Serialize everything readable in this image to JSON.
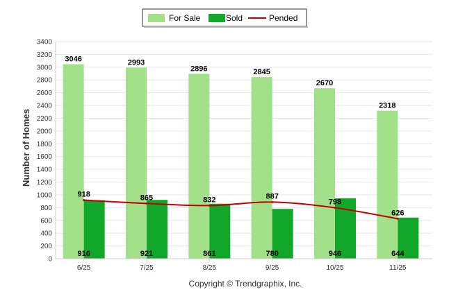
{
  "chart_data": {
    "type": "bar",
    "categories": [
      "6/25",
      "7/25",
      "8/25",
      "9/25",
      "10/25",
      "11/25"
    ],
    "series": [
      {
        "name": "For Sale",
        "kind": "bar",
        "color": "#a3e08a",
        "values": [
          3046,
          2993,
          2896,
          2845,
          2670,
          2318
        ]
      },
      {
        "name": "Sold",
        "kind": "bar",
        "color": "#12a72a",
        "values": [
          916,
          921,
          861,
          780,
          946,
          644
        ]
      },
      {
        "name": "Pended",
        "kind": "line",
        "color": "#c00000",
        "values": [
          918,
          865,
          832,
          887,
          798,
          626
        ]
      }
    ],
    "ylabel": "Number of Homes",
    "ylim": [
      0,
      3400
    ],
    "yticks": [
      0,
      200,
      400,
      600,
      800,
      1000,
      1200,
      1400,
      1600,
      1800,
      2000,
      2200,
      2400,
      2600,
      2800,
      3000,
      3200,
      3400
    ],
    "grid": true,
    "legend_position": "top-center"
  },
  "footer": {
    "copyright": "Copyright © Trendgraphix, Inc."
  }
}
